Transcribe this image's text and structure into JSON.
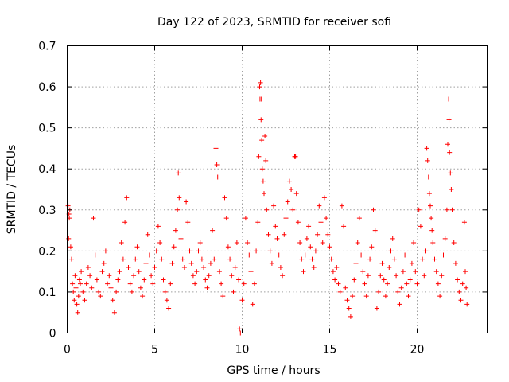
{
  "chart_data": {
    "type": "scatter",
    "title": "Day 122 of 2023, SRMTID for receiver sofi",
    "xlabel": "GPS time / hours",
    "ylabel": "SRMTID / TECUs",
    "xlim": [
      0,
      24
    ],
    "ylim": [
      0,
      0.7
    ],
    "x_ticks": [
      0,
      5,
      10,
      15,
      20
    ],
    "x_tick_labels": [
      "0",
      "5",
      "10",
      "15",
      "20"
    ],
    "y_ticks": [
      0,
      0.1,
      0.2,
      0.3,
      0.4,
      0.5,
      0.6,
      0.7
    ],
    "y_tick_labels": [
      "0",
      "0.1",
      "0.2",
      "0.3",
      "0.4",
      "0.5",
      "0.6",
      "0.7"
    ],
    "grid": true,
    "marker": "+",
    "color": "#ff0000",
    "series": [
      {
        "name": "SRMTID",
        "points": [
          [
            0.05,
            0.31
          ],
          [
            0.1,
            0.29
          ],
          [
            0.12,
            0.28
          ],
          [
            0.15,
            0.3
          ],
          [
            0.08,
            0.23
          ],
          [
            0.2,
            0.21
          ],
          [
            0.25,
            0.18
          ],
          [
            0.3,
            0.12
          ],
          [
            0.35,
            0.1
          ],
          [
            0.4,
            0.08
          ],
          [
            0.45,
            0.14
          ],
          [
            0.5,
            0.11
          ],
          [
            0.55,
            0.07
          ],
          [
            0.6,
            0.05
          ],
          [
            0.65,
            0.09
          ],
          [
            0.7,
            0.13
          ],
          [
            0.75,
            0.12
          ],
          [
            0.8,
            0.15
          ],
          [
            0.9,
            0.1
          ],
          [
            1.0,
            0.08
          ],
          [
            1.1,
            0.12
          ],
          [
            1.2,
            0.16
          ],
          [
            1.3,
            0.14
          ],
          [
            1.4,
            0.11
          ],
          [
            1.5,
            0.28
          ],
          [
            1.6,
            0.19
          ],
          [
            1.7,
            0.13
          ],
          [
            1.8,
            0.1
          ],
          [
            1.9,
            0.09
          ],
          [
            2.0,
            0.15
          ],
          [
            2.1,
            0.17
          ],
          [
            2.2,
            0.2
          ],
          [
            2.3,
            0.12
          ],
          [
            2.4,
            0.14
          ],
          [
            2.5,
            0.11
          ],
          [
            2.6,
            0.08
          ],
          [
            2.7,
            0.05
          ],
          [
            2.8,
            0.1
          ],
          [
            2.9,
            0.13
          ],
          [
            3.0,
            0.15
          ],
          [
            3.1,
            0.22
          ],
          [
            3.2,
            0.18
          ],
          [
            3.3,
            0.27
          ],
          [
            3.4,
            0.33
          ],
          [
            3.5,
            0.16
          ],
          [
            3.6,
            0.12
          ],
          [
            3.7,
            0.1
          ],
          [
            3.8,
            0.14
          ],
          [
            3.9,
            0.18
          ],
          [
            4.0,
            0.21
          ],
          [
            4.1,
            0.15
          ],
          [
            4.2,
            0.11
          ],
          [
            4.3,
            0.09
          ],
          [
            4.4,
            0.13
          ],
          [
            4.5,
            0.17
          ],
          [
            4.6,
            0.24
          ],
          [
            4.7,
            0.19
          ],
          [
            4.8,
            0.14
          ],
          [
            4.9,
            0.12
          ],
          [
            5.0,
            0.16
          ],
          [
            5.1,
            0.2
          ],
          [
            5.2,
            0.26
          ],
          [
            5.3,
            0.22
          ],
          [
            5.4,
            0.18
          ],
          [
            5.5,
            0.13
          ],
          [
            5.6,
            0.1
          ],
          [
            5.7,
            0.08
          ],
          [
            5.8,
            0.06
          ],
          [
            5.9,
            0.12
          ],
          [
            6.0,
            0.17
          ],
          [
            6.1,
            0.21
          ],
          [
            6.2,
            0.25
          ],
          [
            6.3,
            0.3
          ],
          [
            6.35,
            0.39
          ],
          [
            6.4,
            0.33
          ],
          [
            6.5,
            0.23
          ],
          [
            6.6,
            0.18
          ],
          [
            6.7,
            0.16
          ],
          [
            6.8,
            0.32
          ],
          [
            6.9,
            0.27
          ],
          [
            7.0,
            0.2
          ],
          [
            7.1,
            0.17
          ],
          [
            7.2,
            0.14
          ],
          [
            7.3,
            0.12
          ],
          [
            7.4,
            0.15
          ],
          [
            7.5,
            0.2
          ],
          [
            7.6,
            0.22
          ],
          [
            7.7,
            0.18
          ],
          [
            7.8,
            0.16
          ],
          [
            7.9,
            0.13
          ],
          [
            8.0,
            0.11
          ],
          [
            8.1,
            0.14
          ],
          [
            8.2,
            0.17
          ],
          [
            8.3,
            0.25
          ],
          [
            8.4,
            0.18
          ],
          [
            8.5,
            0.45
          ],
          [
            8.55,
            0.41
          ],
          [
            8.6,
            0.38
          ],
          [
            8.7,
            0.15
          ],
          [
            8.8,
            0.12
          ],
          [
            8.9,
            0.09
          ],
          [
            9.0,
            0.33
          ],
          [
            9.1,
            0.28
          ],
          [
            9.2,
            0.21
          ],
          [
            9.3,
            0.18
          ],
          [
            9.4,
            0.14
          ],
          [
            9.5,
            0.1
          ],
          [
            9.6,
            0.16
          ],
          [
            9.7,
            0.22
          ],
          [
            9.8,
            0.13
          ],
          [
            9.85,
            0.01
          ],
          [
            9.9,
            0.0
          ],
          [
            10.0,
            0.08
          ],
          [
            10.1,
            0.12
          ],
          [
            10.2,
            0.28
          ],
          [
            10.3,
            0.22
          ],
          [
            10.4,
            0.19
          ],
          [
            10.5,
            0.15
          ],
          [
            10.6,
            0.07
          ],
          [
            10.7,
            0.12
          ],
          [
            10.8,
            0.2
          ],
          [
            10.9,
            0.27
          ],
          [
            10.95,
            0.43
          ],
          [
            11.0,
            0.6
          ],
          [
            11.02,
            0.57
          ],
          [
            11.05,
            0.61
          ],
          [
            11.08,
            0.52
          ],
          [
            11.1,
            0.57
          ],
          [
            11.12,
            0.47
          ],
          [
            11.15,
            0.4
          ],
          [
            11.2,
            0.37
          ],
          [
            11.25,
            0.34
          ],
          [
            11.3,
            0.48
          ],
          [
            11.35,
            0.42
          ],
          [
            11.4,
            0.3
          ],
          [
            11.5,
            0.24
          ],
          [
            11.6,
            0.2
          ],
          [
            11.7,
            0.17
          ],
          [
            11.8,
            0.31
          ],
          [
            11.9,
            0.26
          ],
          [
            12.0,
            0.23
          ],
          [
            12.1,
            0.19
          ],
          [
            12.2,
            0.16
          ],
          [
            12.3,
            0.14
          ],
          [
            12.4,
            0.24
          ],
          [
            12.5,
            0.28
          ],
          [
            12.6,
            0.32
          ],
          [
            12.7,
            0.37
          ],
          [
            12.8,
            0.35
          ],
          [
            12.9,
            0.3
          ],
          [
            13.0,
            0.43
          ],
          [
            13.05,
            0.43
          ],
          [
            13.1,
            0.34
          ],
          [
            13.2,
            0.27
          ],
          [
            13.3,
            0.22
          ],
          [
            13.4,
            0.18
          ],
          [
            13.5,
            0.15
          ],
          [
            13.6,
            0.19
          ],
          [
            13.7,
            0.23
          ],
          [
            13.8,
            0.26
          ],
          [
            13.9,
            0.21
          ],
          [
            14.0,
            0.18
          ],
          [
            14.1,
            0.16
          ],
          [
            14.2,
            0.2
          ],
          [
            14.3,
            0.24
          ],
          [
            14.4,
            0.31
          ],
          [
            14.5,
            0.27
          ],
          [
            14.6,
            0.22
          ],
          [
            14.7,
            0.33
          ],
          [
            14.8,
            0.28
          ],
          [
            14.9,
            0.24
          ],
          [
            15.0,
            0.21
          ],
          [
            15.1,
            0.18
          ],
          [
            15.2,
            0.15
          ],
          [
            15.3,
            0.13
          ],
          [
            15.4,
            0.16
          ],
          [
            15.5,
            0.12
          ],
          [
            15.6,
            0.1
          ],
          [
            15.7,
            0.31
          ],
          [
            15.8,
            0.26
          ],
          [
            15.9,
            0.11
          ],
          [
            16.0,
            0.08
          ],
          [
            16.1,
            0.06
          ],
          [
            16.2,
            0.04
          ],
          [
            16.3,
            0.09
          ],
          [
            16.4,
            0.13
          ],
          [
            16.5,
            0.17
          ],
          [
            16.6,
            0.22
          ],
          [
            16.7,
            0.28
          ],
          [
            16.8,
            0.19
          ],
          [
            16.9,
            0.15
          ],
          [
            17.0,
            0.12
          ],
          [
            17.1,
            0.09
          ],
          [
            17.2,
            0.14
          ],
          [
            17.3,
            0.18
          ],
          [
            17.4,
            0.21
          ],
          [
            17.5,
            0.3
          ],
          [
            17.6,
            0.25
          ],
          [
            17.7,
            0.06
          ],
          [
            17.8,
            0.1
          ],
          [
            17.9,
            0.14
          ],
          [
            18.0,
            0.17
          ],
          [
            18.1,
            0.13
          ],
          [
            18.2,
            0.09
          ],
          [
            18.3,
            0.12
          ],
          [
            18.4,
            0.16
          ],
          [
            18.5,
            0.2
          ],
          [
            18.6,
            0.23
          ],
          [
            18.7,
            0.18
          ],
          [
            18.8,
            0.14
          ],
          [
            18.9,
            0.1
          ],
          [
            19.0,
            0.07
          ],
          [
            19.1,
            0.11
          ],
          [
            19.2,
            0.15
          ],
          [
            19.3,
            0.19
          ],
          [
            19.4,
            0.12
          ],
          [
            19.5,
            0.09
          ],
          [
            19.6,
            0.13
          ],
          [
            19.7,
            0.17
          ],
          [
            19.8,
            0.22
          ],
          [
            19.9,
            0.15
          ],
          [
            20.0,
            0.12
          ],
          [
            20.1,
            0.3
          ],
          [
            20.2,
            0.26
          ],
          [
            20.3,
            0.18
          ],
          [
            20.4,
            0.14
          ],
          [
            20.5,
            0.2
          ],
          [
            20.55,
            0.45
          ],
          [
            20.6,
            0.42
          ],
          [
            20.65,
            0.38
          ],
          [
            20.7,
            0.34
          ],
          [
            20.75,
            0.31
          ],
          [
            20.8,
            0.28
          ],
          [
            20.85,
            0.25
          ],
          [
            20.9,
            0.22
          ],
          [
            21.0,
            0.18
          ],
          [
            21.1,
            0.15
          ],
          [
            21.2,
            0.12
          ],
          [
            21.3,
            0.09
          ],
          [
            21.4,
            0.14
          ],
          [
            21.5,
            0.19
          ],
          [
            21.6,
            0.23
          ],
          [
            21.7,
            0.3
          ],
          [
            21.75,
            0.46
          ],
          [
            21.8,
            0.57
          ],
          [
            21.82,
            0.52
          ],
          [
            21.85,
            0.44
          ],
          [
            21.9,
            0.39
          ],
          [
            21.95,
            0.35
          ],
          [
            22.0,
            0.3
          ],
          [
            22.1,
            0.22
          ],
          [
            22.2,
            0.17
          ],
          [
            22.3,
            0.13
          ],
          [
            22.4,
            0.1
          ],
          [
            22.5,
            0.08
          ],
          [
            22.6,
            0.12
          ],
          [
            22.7,
            0.27
          ],
          [
            22.75,
            0.15
          ],
          [
            22.8,
            0.11
          ],
          [
            22.85,
            0.07
          ]
        ]
      }
    ]
  }
}
